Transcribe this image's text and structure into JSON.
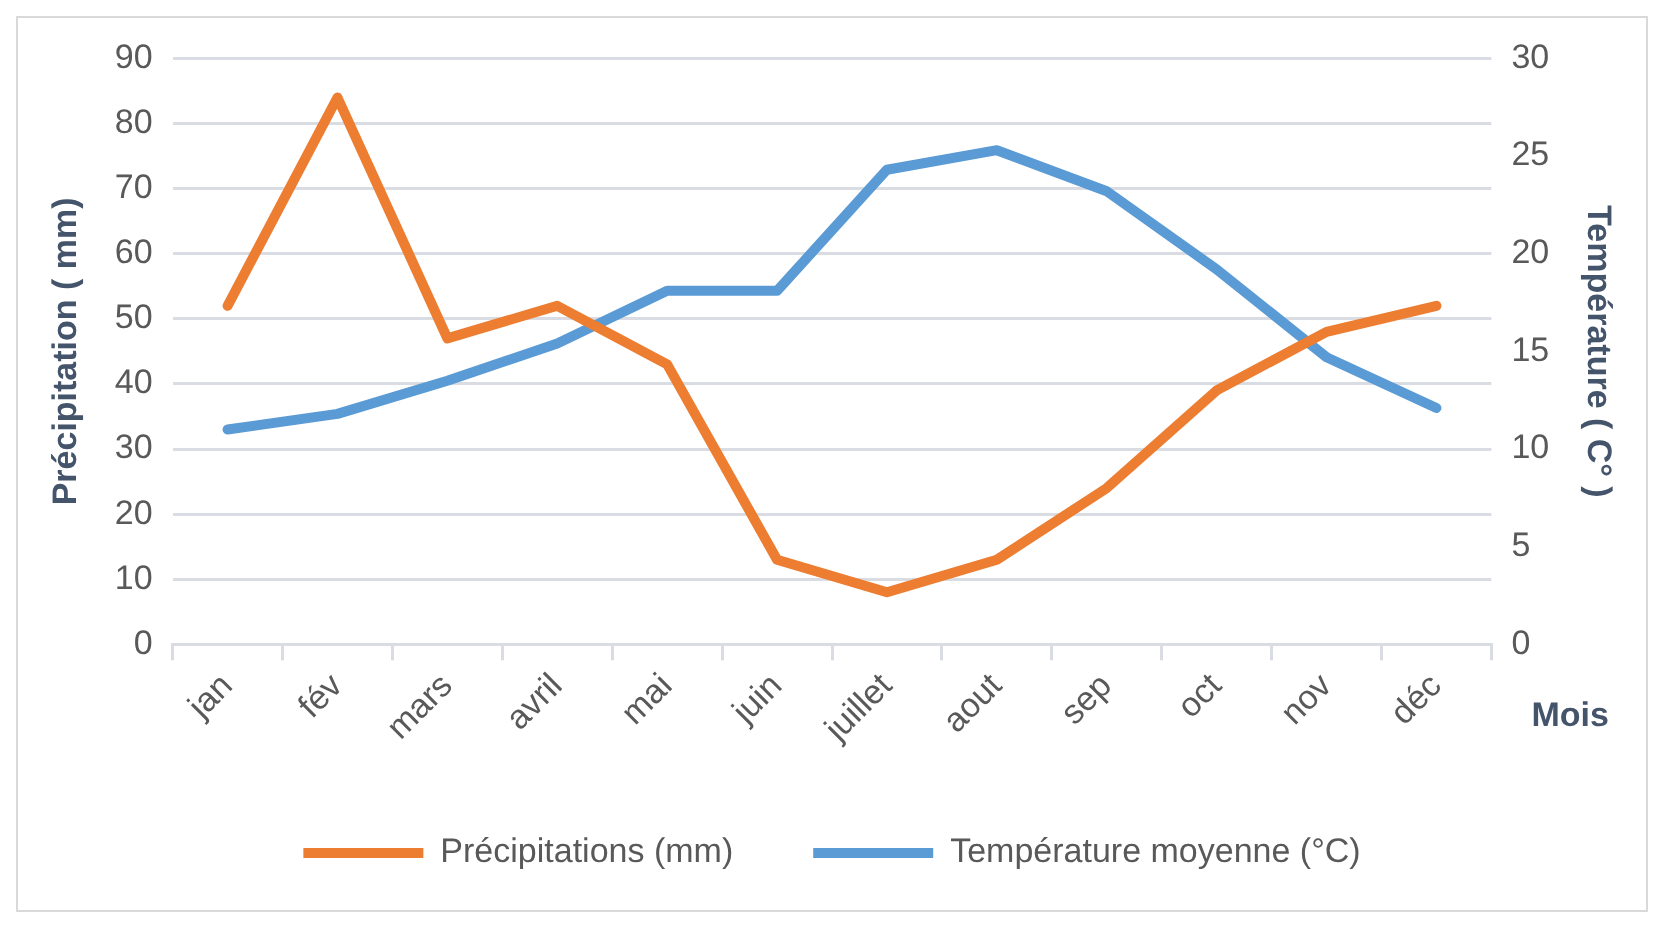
{
  "chart_data": {
    "type": "line",
    "xlabel": "Mois",
    "ylabel": "Précipitation ( mm)",
    "y2label": "Température ( C° )",
    "categories": [
      "jan",
      "fév",
      "mars",
      "avril",
      "mai",
      "juin",
      "juillet",
      "aout",
      "sep",
      "oct",
      "nov",
      "déc"
    ],
    "series": [
      {
        "name": "Précipitations (mm)",
        "color": "#ed7d31",
        "values": [
          52,
          84,
          47,
          52,
          43,
          13,
          8,
          13,
          24,
          39,
          48,
          52
        ]
      },
      {
        "name": "Température moyenne (°C)",
        "color": "#5b9bd5",
        "axis": "y2",
        "values": [
          11.0,
          11.8,
          13.5,
          15.4,
          18.1,
          18.1,
          24.3,
          25.3,
          23.2,
          19.2,
          14.7,
          12.1
        ]
      }
    ],
    "ylim": [
      0,
      90
    ],
    "yticks": [
      0,
      10,
      20,
      30,
      40,
      50,
      60,
      70,
      80,
      90
    ],
    "y2lim": [
      0,
      30
    ],
    "y2ticks": [
      0,
      5,
      10,
      15,
      20,
      25,
      30
    ],
    "grid": "y",
    "legend": "bottom",
    "marker": "none",
    "line_style": "solid"
  }
}
